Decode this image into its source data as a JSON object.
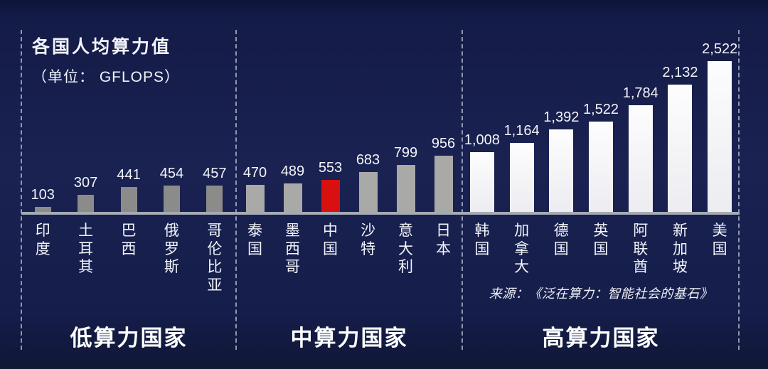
{
  "title": {
    "line1": "各国人均算力值",
    "line2": "（单位：  GFLOPS）"
  },
  "source_note": "来源：《泛在算力：智能社会的基石》",
  "colors": {
    "background_top": "#0e143a",
    "background_mid": "#1a2252",
    "china_highlight_red": "#d8100f",
    "low_group_bar_gray": "#8b8c8a",
    "mid_group_bar_gray": "#a9aaa8",
    "high_group_bar_white": "#f4f3f6",
    "baseline_gray": "#a6aab4",
    "divider_dash": "#b9c0d7",
    "text_white": "#f2f4fa"
  },
  "chart_data": {
    "type": "bar",
    "title": "各国人均算力值",
    "unit": "GFLOPS",
    "xlabel": "",
    "ylabel": "人均算力值 (GFLOPS)",
    "ylim": [
      0,
      2600
    ],
    "grid": false,
    "legend_position": "none",
    "source": "来源：《泛在算力：智能社会的基石》",
    "groups": [
      {
        "group_label": "低算力国家",
        "categories": [
          "印度",
          "土耳其",
          "巴西",
          "俄罗斯",
          "哥伦比亚"
        ],
        "values": [
          103,
          307,
          441,
          454,
          457
        ],
        "value_labels": [
          "103",
          "307",
          "441",
          "454",
          "457"
        ],
        "bar_color": "#8b8c8a"
      },
      {
        "group_label": "中算力国家",
        "categories": [
          "泰国",
          "墨西哥",
          "中国",
          "沙特",
          "意大利",
          "日本"
        ],
        "values": [
          470,
          489,
          553,
          683,
          799,
          956
        ],
        "value_labels": [
          "470",
          "489",
          "553",
          "683",
          "799",
          "956"
        ],
        "bar_color": "#a9aaa8",
        "highlight": {
          "category": "中国",
          "color": "#d8100f"
        }
      },
      {
        "group_label": "高算力国家",
        "categories": [
          "韩国",
          "加拿大",
          "德国",
          "英国",
          "阿联酋",
          "新加坡",
          "美国"
        ],
        "values": [
          1008,
          1164,
          1392,
          1522,
          1784,
          2132,
          2522
        ],
        "value_labels": [
          "1,008",
          "1,164",
          "1,392",
          "1,522",
          "1,784",
          "2,132",
          "2,522"
        ],
        "bar_color": "#f4f3f6"
      }
    ]
  }
}
